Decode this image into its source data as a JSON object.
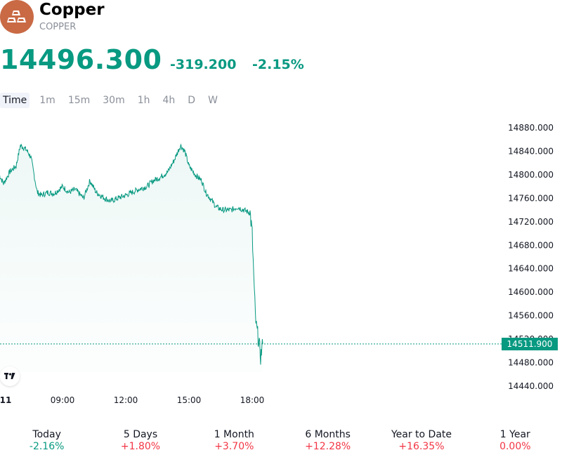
{
  "header": {
    "title": "Copper",
    "ticker": "COPPER",
    "price": "14496.300",
    "change_abs": "-319.200",
    "change_pct": "-2.15%"
  },
  "intervals": [
    "Time",
    "1m",
    "15m",
    "30m",
    "1h",
    "4h",
    "D",
    "W"
  ],
  "active_interval": "Time",
  "price_tag": "14511.900",
  "colors": {
    "up_down_accent": "#089981",
    "negative_change_text": "#089981",
    "positive_change_text": "#f23645",
    "logo_bg": "#c96a45"
  },
  "chart_data": {
    "type": "area",
    "x_tick_labels": [
      "11",
      "09:00",
      "12:00",
      "15:00",
      "18:00"
    ],
    "y_tick_labels": [
      "14880.000",
      "14840.000",
      "14800.000",
      "14760.000",
      "14720.000",
      "14680.000",
      "14640.000",
      "14600.000",
      "14560.000",
      "14520.000",
      "14480.000",
      "14440.000"
    ],
    "ylim": [
      14440,
      14880
    ],
    "x_hours": [
      6.0,
      6.2,
      6.5,
      6.8,
      7.0,
      7.2,
      7.3,
      7.5,
      7.8,
      8.0,
      8.3,
      8.6,
      9.0,
      9.3,
      9.6,
      10.0,
      10.3,
      10.6,
      11.0,
      11.3,
      11.6,
      12.0,
      12.3,
      12.6,
      13.0,
      13.3,
      13.6,
      14.0,
      14.3,
      14.6,
      14.8,
      15.0,
      15.3,
      15.6,
      15.8,
      16.0,
      16.3,
      16.6,
      17.0,
      17.3,
      17.6,
      17.9,
      18.0,
      18.05,
      18.1,
      18.15,
      18.2,
      18.3,
      18.4,
      18.5
    ],
    "values": [
      14800,
      14785,
      14805,
      14815,
      14850,
      14845,
      14842,
      14830,
      14770,
      14765,
      14770,
      14768,
      14780,
      14770,
      14775,
      14760,
      14790,
      14770,
      14760,
      14755,
      14760,
      14765,
      14770,
      14775,
      14780,
      14790,
      14795,
      14805,
      14825,
      14850,
      14840,
      14815,
      14800,
      14790,
      14770,
      14760,
      14745,
      14740,
      14740,
      14745,
      14740,
      14735,
      14700,
      14650,
      14600,
      14560,
      14540,
      14520,
      14490,
      14512
    ],
    "last_value": 14511.9
  },
  "performance": [
    {
      "label": "Today",
      "value": "-2.16%",
      "dir": "neg"
    },
    {
      "label": "5 Days",
      "value": "+1.80%",
      "dir": "pos"
    },
    {
      "label": "1 Month",
      "value": "+3.70%",
      "dir": "pos"
    },
    {
      "label": "6 Months",
      "value": "+12.28%",
      "dir": "pos"
    },
    {
      "label": "Year to Date",
      "value": "+16.35%",
      "dir": "pos"
    },
    {
      "label": "1 Year",
      "value": "0.00%",
      "dir": "pos"
    }
  ]
}
